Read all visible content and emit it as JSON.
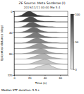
{
  "chart_data": {
    "type": "ridgeline",
    "title": "ZE Source: Meta Sorderas (I)",
    "subtitle": "2019/11/11 00:00 Mw 5.4",
    "x_label": "Time (s)",
    "y_label": "Epicentral distance (deg)",
    "footnote": "Median STF duration: 5.5 s",
    "x": [
      0,
      5,
      10,
      15,
      20,
      25,
      30,
      35,
      40,
      45,
      50,
      55,
      60,
      65,
      70
    ],
    "xlim": [
      0,
      70
    ],
    "xticks": [
      0,
      20,
      40,
      60
    ],
    "ylim": [
      0,
      120
    ],
    "yticks": [
      0,
      40,
      80,
      120
    ],
    "colorbar": {
      "range": [
        0,
        100
      ],
      "ticks": [
        0,
        50,
        100
      ]
    },
    "series": [
      {
        "offset": 10,
        "level": 95,
        "values": [
          0,
          1,
          3,
          8,
          11,
          7,
          3,
          2,
          1,
          1,
          0,
          0,
          0,
          0,
          0
        ]
      },
      {
        "offset": 20,
        "level": 88,
        "values": [
          0,
          0,
          2,
          6,
          10,
          9,
          4,
          2,
          1,
          1,
          1,
          0,
          0,
          0,
          0
        ]
      },
      {
        "offset": 30,
        "level": 80,
        "values": [
          0,
          0,
          1,
          4,
          9,
          10,
          6,
          3,
          2,
          1,
          1,
          0,
          0,
          0,
          0
        ]
      },
      {
        "offset": 40,
        "level": 72,
        "values": [
          0,
          0,
          1,
          3,
          7,
          10,
          8,
          4,
          2,
          1,
          1,
          1,
          0,
          0,
          0
        ]
      },
      {
        "offset": 50,
        "level": 65,
        "values": [
          0,
          0,
          0,
          2,
          5,
          9,
          10,
          6,
          3,
          2,
          1,
          1,
          0,
          0,
          0
        ]
      },
      {
        "offset": 60,
        "level": 58,
        "values": [
          0,
          0,
          0,
          1,
          4,
          8,
          10,
          8,
          4,
          2,
          1,
          1,
          0,
          0,
          0
        ]
      },
      {
        "offset": 70,
        "level": 50,
        "values": [
          0,
          0,
          0,
          1,
          3,
          6,
          9,
          10,
          6,
          3,
          2,
          1,
          0,
          0,
          0
        ]
      },
      {
        "offset": 80,
        "level": 43,
        "values": [
          0,
          0,
          0,
          1,
          2,
          5,
          8,
          10,
          8,
          4,
          2,
          1,
          1,
          0,
          0
        ]
      },
      {
        "offset": 90,
        "level": 36,
        "values": [
          0,
          0,
          0,
          0,
          2,
          4,
          7,
          9,
          10,
          6,
          3,
          2,
          1,
          0,
          0
        ]
      },
      {
        "offset": 100,
        "level": 28,
        "values": [
          0,
          0,
          0,
          0,
          1,
          3,
          6,
          8,
          10,
          8,
          4,
          2,
          1,
          0,
          0
        ]
      },
      {
        "offset": 110,
        "level": 20,
        "values": [
          0,
          0,
          0,
          0,
          1,
          2,
          5,
          7,
          9,
          10,
          6,
          3,
          1,
          0,
          0
        ]
      }
    ]
  }
}
